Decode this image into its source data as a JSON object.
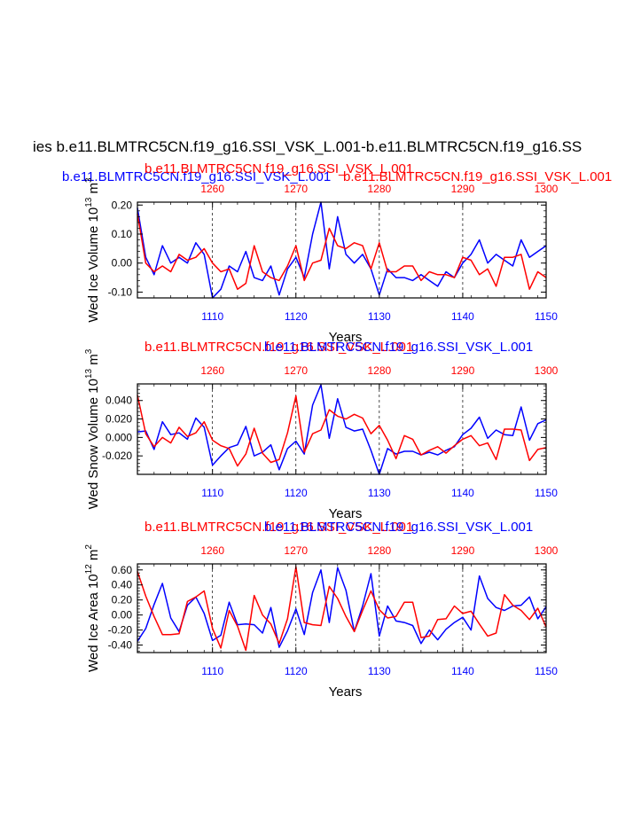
{
  "figure": {
    "main_title": "ies b.e11.BLMTRC5CN.f19_g16.SSI_VSK_L.001-b.e11.BLMTRC5CN.f19_g16.SS",
    "legend_blue": "b.e11.BLMTRC5CN.f19_g16.SSI_VSK_L.001",
    "legend_red": "b.e11.BLMTRC5CN.f19_g16.SSI_VSK_L.001",
    "colors": {
      "blue": "#0000ff",
      "red": "#ff0000",
      "black": "#000000"
    }
  },
  "chart_data": [
    {
      "type": "line",
      "title_blue": "b.e11.BLMTRC5CN.f19_g16.SSI_VSK_L.001",
      "title_red": "b.e11.BLMTRC5CN.f19_g16.SSI_VSK_L.001",
      "ylabel": "Wed Ice Volume 10",
      "ylabel_exp": "13",
      "ylabel_unit": " m",
      "ylabel_unit_exp": "3",
      "xlabel": "Years",
      "xlim": [
        1101,
        1150
      ],
      "ylim": [
        -0.12,
        0.21
      ],
      "yticks": [
        -0.1,
        0.0,
        0.1,
        0.2
      ],
      "yticklabels": [
        "-0.10",
        "0.00",
        "0.10",
        "0.20"
      ],
      "xticks_bottom": [
        1110,
        1120,
        1130,
        1140,
        1150
      ],
      "xtick_labels_bottom": [
        "1110",
        "1120",
        "1130",
        "1140",
        "1150"
      ],
      "xticks_top": [
        1110,
        1120,
        1130,
        1140,
        1150
      ],
      "xtick_labels_top": [
        "1260",
        "1270",
        "1280",
        "1290",
        "1300"
      ],
      "series": [
        {
          "name": "blue",
          "color": "#0000ff",
          "x_start": 1101,
          "values": [
            0.19,
            0.02,
            -0.04,
            0.06,
            0.0,
            0.02,
            0.0,
            0.07,
            0.03,
            -0.12,
            -0.09,
            -0.01,
            -0.03,
            0.04,
            -0.05,
            -0.06,
            -0.01,
            -0.11,
            -0.02,
            0.02,
            -0.05,
            0.1,
            0.21,
            -0.02,
            0.16,
            0.03,
            0.0,
            0.03,
            -0.02,
            -0.11,
            -0.02,
            -0.05,
            -0.05,
            -0.06,
            -0.04,
            -0.06,
            -0.08,
            -0.03,
            -0.05,
            0.0,
            0.03,
            0.08,
            0.0,
            0.03,
            0.01,
            -0.01,
            0.08,
            0.02,
            0.04,
            0.06
          ]
        },
        {
          "name": "red",
          "color": "#ff0000",
          "x_start": 1101,
          "values": [
            0.17,
            0.0,
            -0.03,
            -0.01,
            -0.03,
            0.03,
            0.01,
            0.02,
            0.05,
            0.0,
            -0.03,
            -0.02,
            -0.09,
            -0.07,
            0.06,
            -0.03,
            -0.05,
            -0.06,
            -0.01,
            0.06,
            -0.06,
            0.0,
            0.01,
            0.12,
            0.06,
            0.05,
            0.07,
            0.06,
            -0.02,
            0.07,
            -0.03,
            -0.03,
            -0.01,
            -0.01,
            -0.06,
            -0.03,
            -0.04,
            -0.04,
            -0.05,
            0.02,
            0.01,
            -0.04,
            -0.02,
            -0.08,
            0.02,
            0.02,
            0.03,
            -0.09,
            -0.03,
            -0.05
          ]
        }
      ]
    },
    {
      "type": "line",
      "title_blue": "b.e11.BLMTRC5CN.f19_g16.SSI_VSK_L.001",
      "title_red": "b.e11.BLMTRC5CN.f19_g16.SSI_VSK_L.001",
      "ylabel": "Wed Snow Volume 10",
      "ylabel_exp": "13",
      "ylabel_unit": " m",
      "ylabel_unit_exp": "3",
      "xlabel": "Years",
      "xlim": [
        1101,
        1150
      ],
      "ylim": [
        -0.04,
        0.058
      ],
      "yticks": [
        -0.02,
        0.0,
        0.02,
        0.04
      ],
      "yticklabels": [
        "-0.020",
        "0.000",
        "0.020",
        "0.040"
      ],
      "xticks_bottom": [
        1110,
        1120,
        1130,
        1140,
        1150
      ],
      "xtick_labels_bottom": [
        "1110",
        "1120",
        "1130",
        "1140",
        "1150"
      ],
      "xticks_top": [
        1110,
        1120,
        1130,
        1140,
        1150
      ],
      "xtick_labels_top": [
        "1260",
        "1270",
        "1280",
        "1290",
        "1300"
      ],
      "series": [
        {
          "name": "blue",
          "color": "#0000ff",
          "x_start": 1101,
          "values": [
            0.006,
            0.007,
            -0.013,
            0.017,
            0.003,
            0.005,
            -0.002,
            0.021,
            0.011,
            -0.03,
            -0.02,
            -0.011,
            -0.008,
            0.012,
            -0.02,
            -0.016,
            -0.008,
            -0.035,
            -0.012,
            -0.004,
            -0.018,
            0.035,
            0.057,
            -0.001,
            0.042,
            0.011,
            0.007,
            0.009,
            -0.014,
            -0.04,
            -0.012,
            -0.018,
            -0.015,
            -0.015,
            -0.019,
            -0.016,
            -0.019,
            -0.014,
            -0.01,
            0.003,
            0.01,
            0.022,
            -0.001,
            0.008,
            0.003,
            0.002,
            0.033,
            -0.003,
            0.015,
            0.019
          ]
        },
        {
          "name": "red",
          "color": "#ff0000",
          "x_start": 1101,
          "values": [
            0.046,
            0.004,
            -0.01,
            0.0,
            -0.006,
            0.011,
            0.001,
            0.005,
            0.017,
            -0.003,
            -0.009,
            -0.012,
            -0.031,
            -0.018,
            0.01,
            -0.017,
            -0.027,
            -0.024,
            0.005,
            0.045,
            -0.016,
            0.004,
            0.008,
            0.03,
            0.023,
            0.02,
            0.025,
            0.021,
            0.004,
            0.013,
            -0.003,
            -0.023,
            0.002,
            -0.002,
            -0.019,
            -0.014,
            -0.01,
            -0.017,
            -0.009,
            -0.002,
            0.002,
            -0.009,
            -0.006,
            -0.024,
            0.009,
            0.009,
            0.008,
            -0.025,
            -0.013,
            -0.011
          ]
        }
      ]
    },
    {
      "type": "line",
      "title_blue": "b.e11.BLMTRC5CN.f19_g16.SSI_VSK_L.001",
      "title_red": "b.e11.BLMTRC5CN.f19_g16.SSI_VSK_L.001",
      "ylabel": "Wed Ice Area 10",
      "ylabel_exp": "12",
      "ylabel_unit": " m",
      "ylabel_unit_exp": "2",
      "xlabel": "Years",
      "xlim": [
        1101,
        1150
      ],
      "ylim": [
        -0.5,
        0.68
      ],
      "yticks": [
        -0.4,
        -0.2,
        0.0,
        0.2,
        0.4,
        0.6
      ],
      "yticklabels": [
        "-0.40",
        "-0.20",
        "0.00",
        "0.20",
        "0.40",
        "0.60"
      ],
      "xticks_bottom": [
        1110,
        1120,
        1130,
        1140,
        1150
      ],
      "xtick_labels_bottom": [
        "1110",
        "1120",
        "1130",
        "1140",
        "1150"
      ],
      "xticks_top": [
        1110,
        1120,
        1130,
        1140,
        1150
      ],
      "xtick_labels_top": [
        "1260",
        "1270",
        "1280",
        "1290",
        "1300"
      ],
      "series": [
        {
          "name": "blue",
          "color": "#0000ff",
          "x_start": 1101,
          "values": [
            -0.35,
            -0.18,
            0.14,
            0.42,
            -0.04,
            -0.22,
            0.13,
            0.24,
            0.02,
            -0.34,
            -0.27,
            0.17,
            -0.13,
            -0.12,
            -0.13,
            -0.24,
            0.1,
            -0.43,
            -0.21,
            0.08,
            -0.26,
            0.3,
            0.6,
            -0.1,
            0.63,
            0.33,
            -0.22,
            0.12,
            0.55,
            -0.28,
            0.12,
            -0.08,
            -0.1,
            -0.14,
            -0.38,
            -0.2,
            -0.33,
            -0.19,
            -0.1,
            -0.03,
            -0.2,
            0.52,
            0.22,
            0.1,
            0.06,
            0.12,
            0.13,
            0.24,
            -0.05,
            0.11
          ]
        },
        {
          "name": "red",
          "color": "#ff0000",
          "x_start": 1101,
          "values": [
            0.58,
            0.25,
            -0.02,
            -0.26,
            -0.26,
            -0.25,
            0.18,
            0.24,
            0.32,
            -0.18,
            -0.44,
            0.06,
            -0.15,
            -0.47,
            0.26,
            0.0,
            -0.12,
            -0.38,
            -0.05,
            0.64,
            -0.1,
            -0.13,
            -0.14,
            0.38,
            0.22,
            -0.02,
            -0.22,
            0.06,
            0.32,
            0.07,
            -0.04,
            -0.02,
            0.17,
            0.17,
            -0.3,
            -0.28,
            -0.06,
            -0.05,
            0.12,
            0.02,
            0.05,
            -0.12,
            -0.28,
            -0.24,
            0.27,
            0.13,
            0.06,
            -0.06,
            0.09,
            -0.16
          ]
        }
      ]
    }
  ]
}
